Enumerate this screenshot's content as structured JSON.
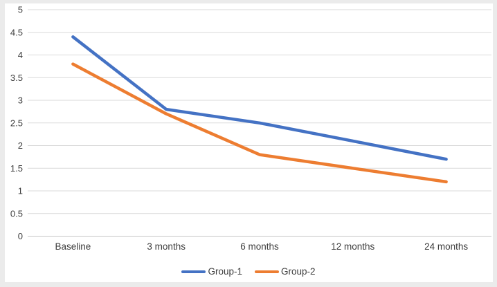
{
  "chart": {
    "panel_background": "#ffffff",
    "frame_background": "#ebebeb",
    "gridline_color": "#d9d9d9",
    "axis_line_color": "#c6c6c6",
    "label_color": "#3d3d3d"
  },
  "chart_data": {
    "type": "line",
    "title": "",
    "xlabel": "",
    "ylabel": "",
    "categories": [
      "Baseline",
      "3 months",
      "6 months",
      "12 months",
      "24 months"
    ],
    "series": [
      {
        "name": "Group-1",
        "color": "#4472C4",
        "values": [
          4.4,
          2.8,
          2.5,
          2.1,
          1.7
        ]
      },
      {
        "name": "Group-2",
        "color": "#ED7D31",
        "values": [
          3.8,
          2.7,
          1.8,
          1.5,
          1.2
        ]
      }
    ],
    "ylim": [
      0,
      5
    ],
    "ytick_step": 0.5,
    "ytick_labels": [
      "0",
      "0.5",
      "1",
      "1.5",
      "2",
      "2.5",
      "3",
      "3.5",
      "4",
      "4.5",
      "5"
    ],
    "grid": true,
    "legend_position": "bottom-center"
  }
}
